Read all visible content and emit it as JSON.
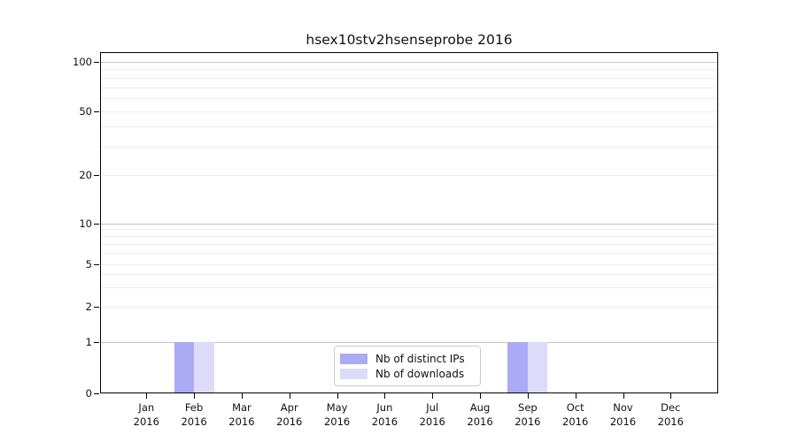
{
  "title": "hsex10stv2hsenseprobe 2016",
  "chart_data": {
    "type": "bar",
    "title": "hsex10stv2hsenseprobe 2016",
    "categories": [
      {
        "month": "Jan",
        "year": "2016"
      },
      {
        "month": "Feb",
        "year": "2016"
      },
      {
        "month": "Mar",
        "year": "2016"
      },
      {
        "month": "Apr",
        "year": "2016"
      },
      {
        "month": "May",
        "year": "2016"
      },
      {
        "month": "Jun",
        "year": "2016"
      },
      {
        "month": "Jul",
        "year": "2016"
      },
      {
        "month": "Aug",
        "year": "2016"
      },
      {
        "month": "Sep",
        "year": "2016"
      },
      {
        "month": "Oct",
        "year": "2016"
      },
      {
        "month": "Nov",
        "year": "2016"
      },
      {
        "month": "Dec",
        "year": "2016"
      }
    ],
    "series": [
      {
        "name": "Nb of distinct IPs",
        "color": "#aaaaf5",
        "values": [
          0,
          1,
          0,
          0,
          0,
          0,
          0,
          0,
          1,
          0,
          0,
          0
        ]
      },
      {
        "name": "Nb of downloads",
        "color": "#dcdcfa",
        "values": [
          0,
          1,
          0,
          0,
          0,
          0,
          0,
          0,
          1,
          0,
          0,
          0
        ]
      }
    ],
    "yticks": [
      0,
      1,
      2,
      5,
      10,
      20,
      50,
      100
    ],
    "yscale": "symlog",
    "ylim": [
      0,
      115
    ],
    "xlabel": "",
    "ylabel": "",
    "grid": "horizontal major+minor",
    "legend_position": "lower center"
  }
}
